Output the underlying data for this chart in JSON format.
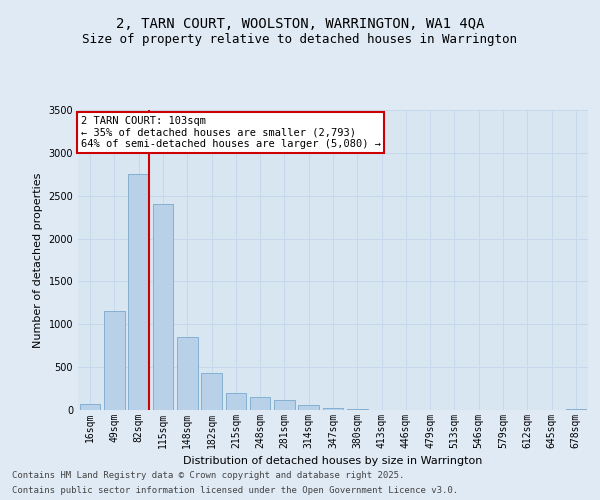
{
  "title1": "2, TARN COURT, WOOLSTON, WARRINGTON, WA1 4QA",
  "title2": "Size of property relative to detached houses in Warrington",
  "xlabel": "Distribution of detached houses by size in Warrington",
  "ylabel": "Number of detached properties",
  "categories": [
    "16sqm",
    "49sqm",
    "82sqm",
    "115sqm",
    "148sqm",
    "182sqm",
    "215sqm",
    "248sqm",
    "281sqm",
    "314sqm",
    "347sqm",
    "380sqm",
    "413sqm",
    "446sqm",
    "479sqm",
    "513sqm",
    "546sqm",
    "579sqm",
    "612sqm",
    "645sqm",
    "678sqm"
  ],
  "values": [
    75,
    1150,
    2750,
    2400,
    850,
    430,
    200,
    155,
    115,
    60,
    25,
    10,
    5,
    3,
    2,
    1,
    0,
    0,
    0,
    0,
    10
  ],
  "bar_color": "#b8d0e8",
  "bar_edge_color": "#6a9fc8",
  "vline_x_index": 2,
  "vline_color": "#cc0000",
  "ylim": [
    0,
    3500
  ],
  "yticks": [
    0,
    500,
    1000,
    1500,
    2000,
    2500,
    3000,
    3500
  ],
  "annotation_text": "2 TARN COURT: 103sqm\n← 35% of detached houses are smaller (2,793)\n64% of semi-detached houses are larger (5,080) →",
  "annotation_box_facecolor": "#ffffff",
  "annotation_box_edgecolor": "#cc0000",
  "footer1": "Contains HM Land Registry data © Crown copyright and database right 2025.",
  "footer2": "Contains public sector information licensed under the Open Government Licence v3.0.",
  "bg_color": "#e0eaf5",
  "plot_bg_color": "#d8e6f2",
  "grid_color": "#c8d8ec",
  "title_fontsize": 10,
  "subtitle_fontsize": 9,
  "tick_fontsize": 7,
  "ylabel_fontsize": 8,
  "xlabel_fontsize": 8,
  "footer_fontsize": 6.5,
  "annotation_fontsize": 7.5
}
